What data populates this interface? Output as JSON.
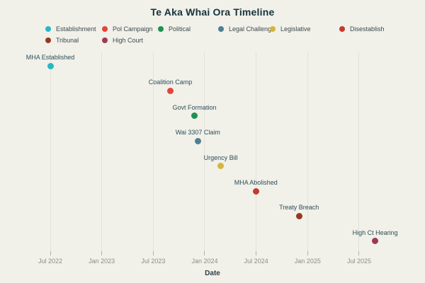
{
  "chart_data": {
    "type": "scatter",
    "title": "Te Aka Whai Ora Timeline",
    "xlabel": "Date",
    "x_ticks": [
      "Jul 2022",
      "Jan 2023",
      "Jul 2023",
      "Jan 2024",
      "Jul 2024",
      "Jan 2025",
      "Jul 2025"
    ],
    "x_range": [
      "2022-06",
      "2025-10"
    ],
    "grid": "vertical-only",
    "legend_position": "top",
    "categories": [
      {
        "label": "Establishment",
        "color": "#29b7c4"
      },
      {
        "label": "Pol Campaign",
        "color": "#e0463c"
      },
      {
        "label": "Political",
        "color": "#209150"
      },
      {
        "label": "Legal Challenge",
        "color": "#507e92"
      },
      {
        "label": "Legislative",
        "color": "#d4b63e"
      },
      {
        "label": "Disestablish",
        "color": "#c23b2e"
      },
      {
        "label": "Tribunal",
        "color": "#96391f"
      },
      {
        "label": "High Court",
        "color": "#9e3950"
      }
    ],
    "events": [
      {
        "label": "MHA Established",
        "category": "Establishment",
        "date": "2022-07-01"
      },
      {
        "label": "Coalition Camp",
        "category": "Pol Campaign",
        "date": "2023-09-01"
      },
      {
        "label": "Govt Formation",
        "category": "Political",
        "date": "2023-11-25"
      },
      {
        "label": "Wai 3307 Claim",
        "category": "Legal Challenge",
        "date": "2023-12-07"
      },
      {
        "label": "Urgency Bill",
        "category": "Legislative",
        "date": "2024-02-27"
      },
      {
        "label": "MHA Abolished",
        "category": "Disestablish",
        "date": "2024-06-30"
      },
      {
        "label": "Treaty Breach",
        "category": "Tribunal",
        "date": "2024-12-01"
      },
      {
        "label": "High Ct Hearing",
        "category": "High Court",
        "date": "2025-08-27"
      }
    ]
  },
  "colors": {
    "background": "#f1f0e9",
    "gridline": "#e3e2da",
    "title_text": "#14333c",
    "event_label_text": "#2b4f57",
    "tick_label_text": "#8d8d89",
    "axis_label_text": "#2e3f45"
  }
}
